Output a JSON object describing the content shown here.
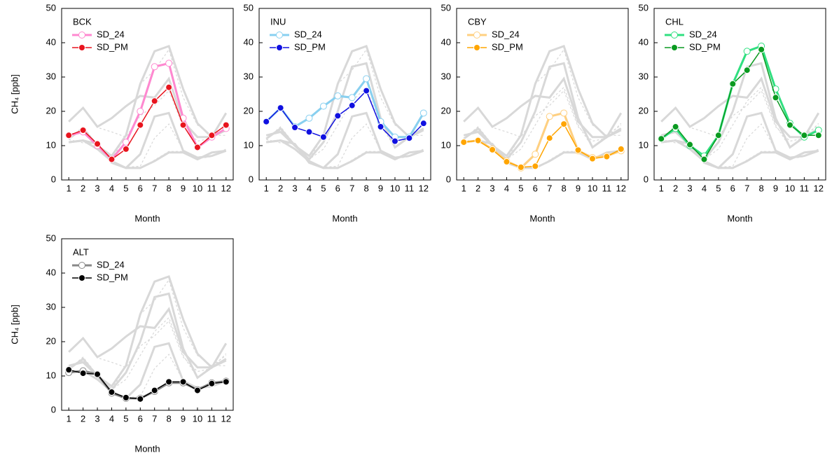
{
  "chart_data": [
    {
      "type": "line",
      "label": "BCK",
      "xlabel": "Month",
      "ylabel": "CH₄ [ppb]",
      "categories": [
        "1",
        "2",
        "3",
        "4",
        "5",
        "6",
        "7",
        "8",
        "9",
        "10",
        "11",
        "12"
      ],
      "ylim": [
        0,
        50
      ],
      "yticks": [
        0,
        10,
        20,
        30,
        40,
        50
      ],
      "series": [
        {
          "name": "SD_24",
          "color": "#ff88d0",
          "marker": "open",
          "values": [
            13,
            14,
            10,
            6,
            11,
            20,
            33,
            34,
            18,
            9.5,
            12.5,
            15
          ]
        },
        {
          "name": "SD_PM",
          "color": "#e8141e",
          "marker": "filled",
          "values": [
            13,
            14.5,
            10.5,
            6,
            9,
            16,
            23,
            27,
            16,
            9.5,
            13,
            16
          ]
        }
      ]
    },
    {
      "type": "line",
      "label": "INU",
      "xlabel": "Month",
      "categories": [
        "1",
        "2",
        "3",
        "4",
        "5",
        "6",
        "7",
        "8",
        "9",
        "10",
        "11",
        "12"
      ],
      "ylim": [
        0,
        50
      ],
      "yticks": [
        0,
        10,
        20,
        30,
        40,
        50
      ],
      "series": [
        {
          "name": "SD_24",
          "color": "#88d0f0",
          "marker": "open",
          "values": [
            17,
            21,
            15.5,
            18,
            21.5,
            24.5,
            24,
            29.5,
            17,
            12.5,
            12.5,
            19.5
          ]
        },
        {
          "name": "SD_PM",
          "color": "#1010e0",
          "marker": "filled",
          "values": [
            17,
            21,
            15.3,
            14,
            12.5,
            18.7,
            21.7,
            26,
            15.5,
            11.3,
            12.2,
            16.5
          ]
        }
      ]
    },
    {
      "type": "line",
      "label": "CBY",
      "xlabel": "Month",
      "categories": [
        "1",
        "2",
        "3",
        "4",
        "5",
        "6",
        "7",
        "8",
        "9",
        "10",
        "11",
        "12"
      ],
      "ylim": [
        0,
        50
      ],
      "yticks": [
        0,
        10,
        20,
        30,
        40,
        50
      ],
      "series": [
        {
          "name": "SD_24",
          "color": "#ffd080",
          "marker": "open",
          "values": [
            11,
            11.5,
            9,
            5.5,
            3.5,
            7.5,
            18.5,
            19.5,
            8.5,
            6.5,
            7,
            8.5
          ]
        },
        {
          "name": "SD_PM",
          "color": "#ffa500",
          "marker": "filled",
          "values": [
            11,
            11.5,
            8.8,
            5.3,
            3.7,
            4,
            12.2,
            16.3,
            8.7,
            6.2,
            6.8,
            9
          ]
        }
      ]
    },
    {
      "type": "line",
      "label": "CHL",
      "xlabel": "Month",
      "categories": [
        "1",
        "2",
        "3",
        "4",
        "5",
        "6",
        "7",
        "8",
        "9",
        "10",
        "11",
        "12"
      ],
      "ylim": [
        0,
        50
      ],
      "yticks": [
        0,
        10,
        20,
        30,
        40,
        50
      ],
      "series": [
        {
          "name": "SD_24",
          "color": "#30e080",
          "marker": "open",
          "values": [
            12,
            15,
            10,
            7,
            13,
            28,
            37.5,
            39,
            26.5,
            16.5,
            12.5,
            14.5
          ]
        },
        {
          "name": "SD_PM",
          "color": "#0a9a20",
          "marker": "filled",
          "values": [
            12,
            15.5,
            10.3,
            6,
            13,
            28,
            32,
            38,
            24,
            16,
            13,
            13
          ]
        }
      ]
    },
    {
      "type": "line",
      "label": "ALT",
      "xlabel": "Month",
      "ylabel": "CH₄ [ppb]",
      "categories": [
        "1",
        "2",
        "3",
        "4",
        "5",
        "6",
        "7",
        "8",
        "9",
        "10",
        "11",
        "12"
      ],
      "ylim": [
        0,
        50
      ],
      "yticks": [
        0,
        10,
        20,
        30,
        40,
        50
      ],
      "series": [
        {
          "name": "SD_24",
          "color": "#888888",
          "marker": "open",
          "values": [
            11,
            11.5,
            10.5,
            5,
            3.5,
            3.5,
            5.5,
            8,
            8,
            6,
            8,
            8.5
          ]
        },
        {
          "name": "SD_PM",
          "color": "#000000",
          "marker": "filled",
          "values": [
            11.8,
            10.8,
            10.5,
            5.3,
            3.7,
            3.3,
            5.8,
            8.3,
            8.3,
            5.8,
            7.8,
            8.3
          ]
        }
      ]
    }
  ]
}
